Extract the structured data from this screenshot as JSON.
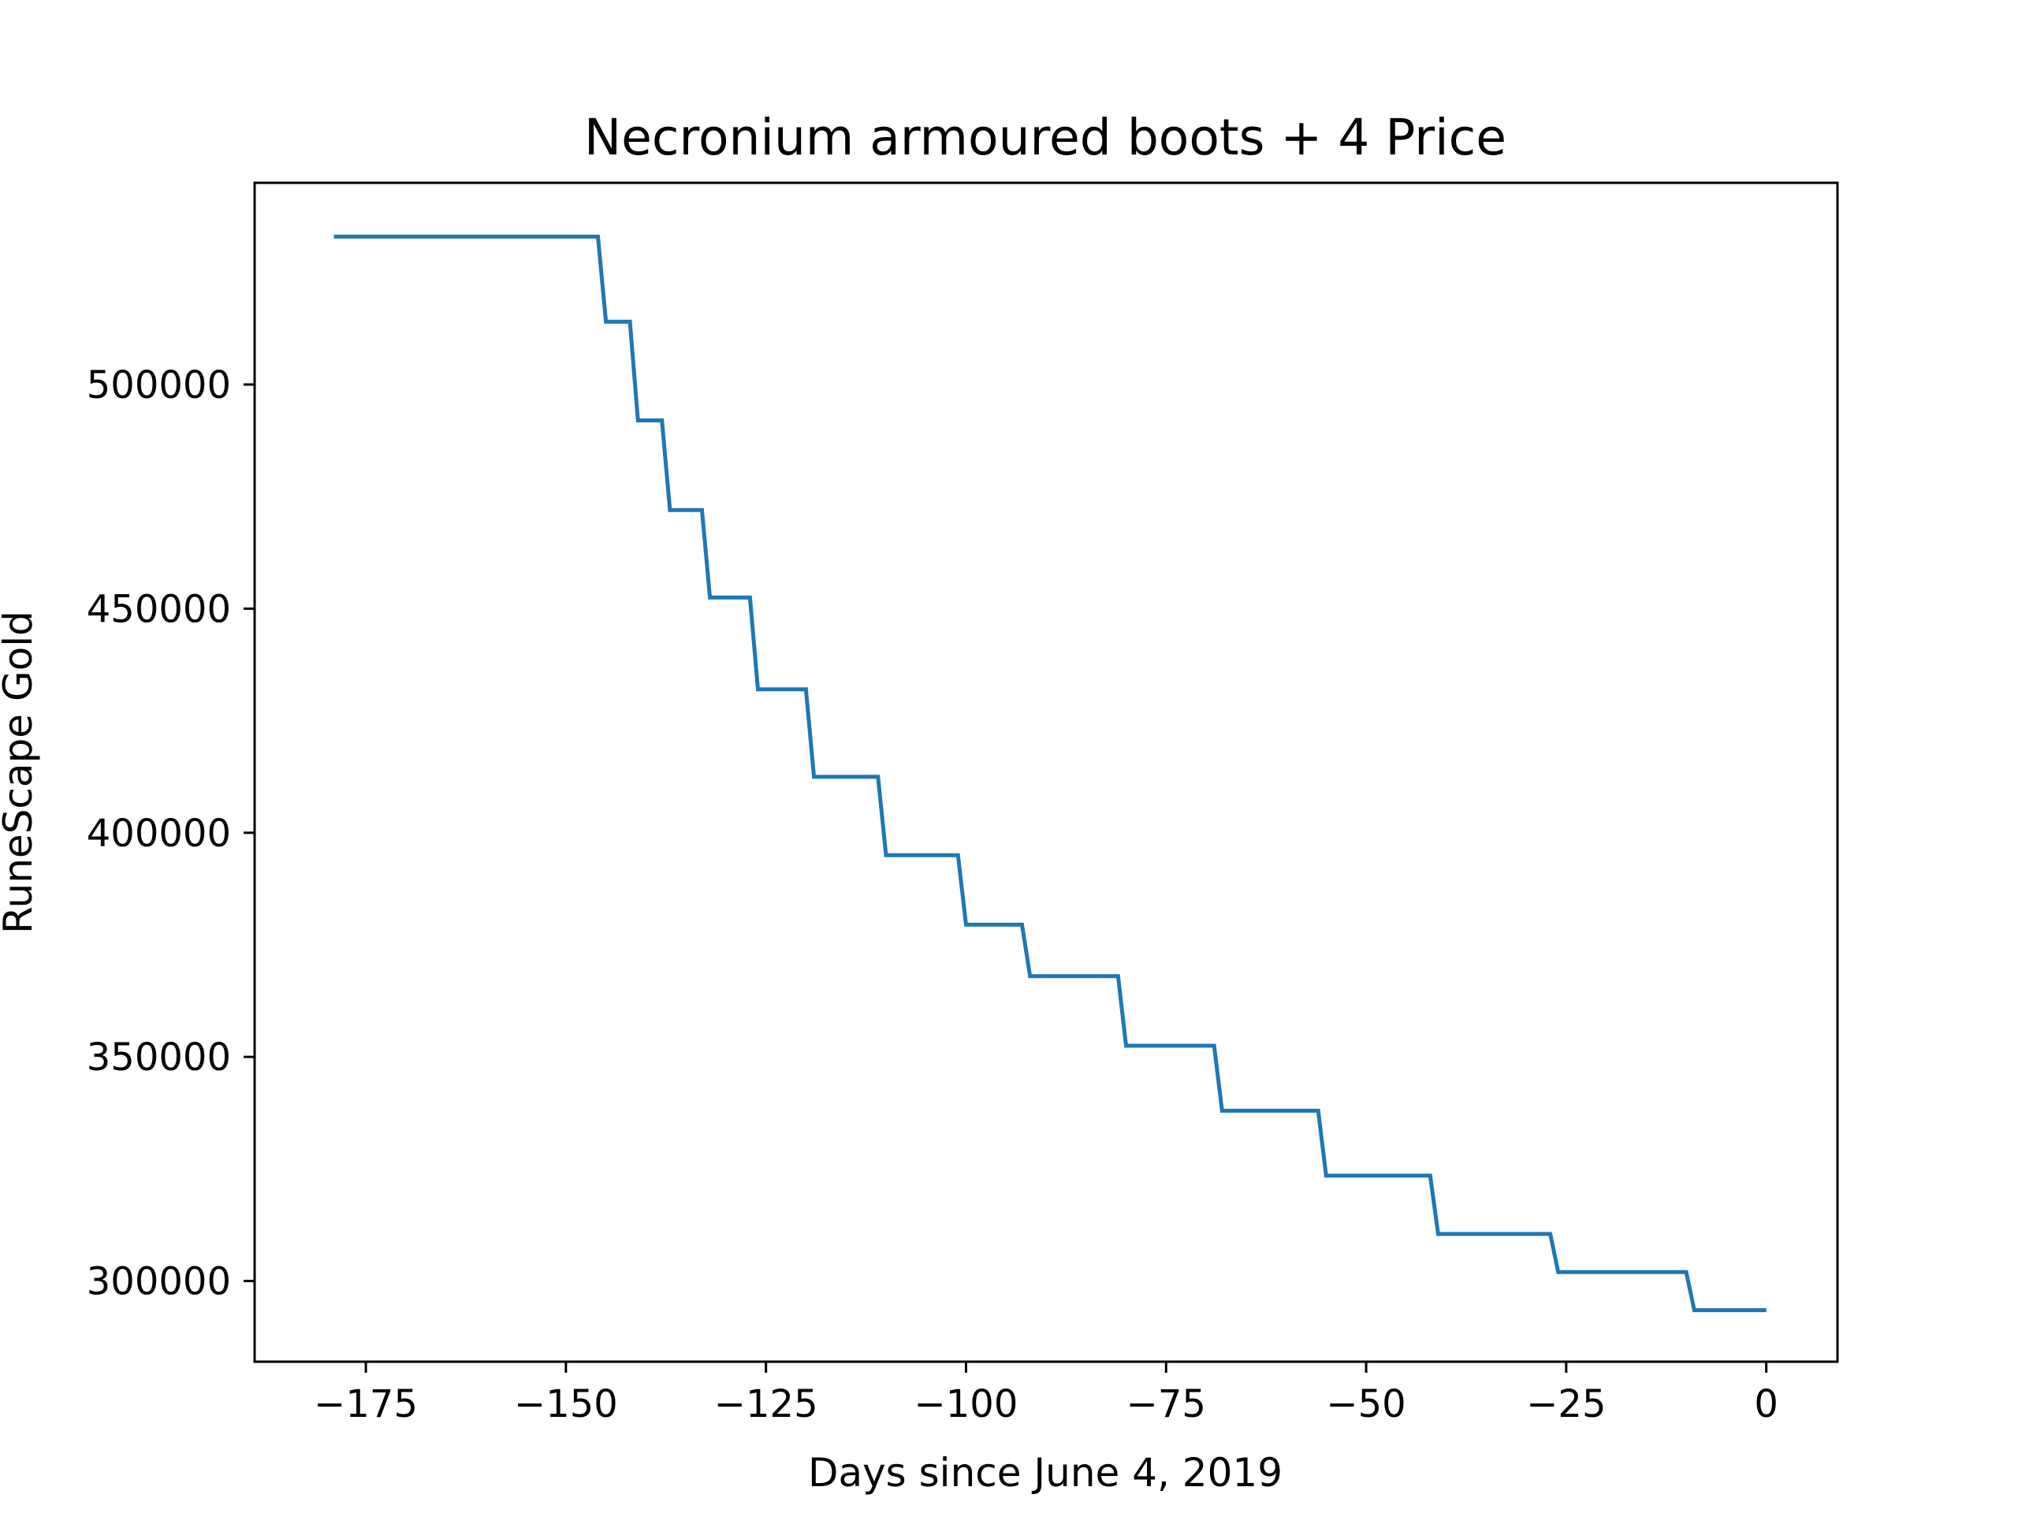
{
  "chart_data": {
    "type": "line",
    "title": "Necronium armoured boots + 4 Price",
    "xlabel": "Days since June 4, 2019",
    "ylabel": "RuneScape Gold",
    "xlim": [
      -188.9,
      8.9
    ],
    "ylim": [
      282000,
      545000
    ],
    "xticks": [
      -175,
      -150,
      -125,
      -100,
      -75,
      -50,
      -25,
      0
    ],
    "xtick_labels": [
      "−175",
      "−150",
      "−125",
      "−100",
      "−75",
      "−50",
      "−25",
      "0"
    ],
    "yticks": [
      300000,
      350000,
      400000,
      450000,
      500000
    ],
    "ytick_labels": [
      "300000",
      "350000",
      "400000",
      "450000",
      "500000"
    ],
    "grid": false,
    "colors": {
      "series": "#1f77b4"
    },
    "series": [
      {
        "x": [
          -179,
          -146,
          -145,
          -142,
          -141,
          -138,
          -137,
          -133,
          -132,
          -127,
          -126,
          -120,
          -119,
          -111,
          -110,
          -101,
          -100,
          -93,
          -92,
          -81,
          -80,
          -69,
          -68,
          -56,
          -55,
          -42,
          -41,
          -27,
          -26,
          -10,
          -9,
          0
        ],
        "y": [
          533000,
          533000,
          514000,
          514000,
          492000,
          492000,
          472000,
          472000,
          452500,
          452500,
          432000,
          432000,
          412500,
          412500,
          395000,
          395000,
          379500,
          379500,
          368000,
          368000,
          352500,
          352500,
          338000,
          338000,
          323500,
          323500,
          310500,
          310500,
          302000,
          302000,
          293500,
          293500
        ]
      }
    ]
  }
}
